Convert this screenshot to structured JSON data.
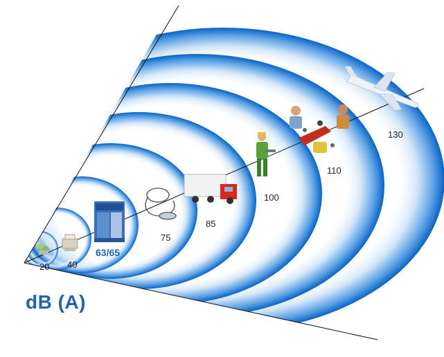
{
  "unit_label": "dB (A)",
  "levels": {
    "l20": "20",
    "l40": "40",
    "product": "63/65",
    "l75": "75",
    "l85": "85",
    "l100": "100",
    "l110": "110",
    "l130": "130"
  },
  "colors": {
    "wave_dark": "#0a63c4",
    "wave_light": "#ffffff",
    "accent": "#1f63b3",
    "line": "#111111"
  },
  "icons": [
    "plant-icon",
    "printer-icon",
    "compressor-icon",
    "vacuum-icon",
    "truck-icon",
    "worker-icon",
    "crowd-icon",
    "airplane-icon"
  ]
}
